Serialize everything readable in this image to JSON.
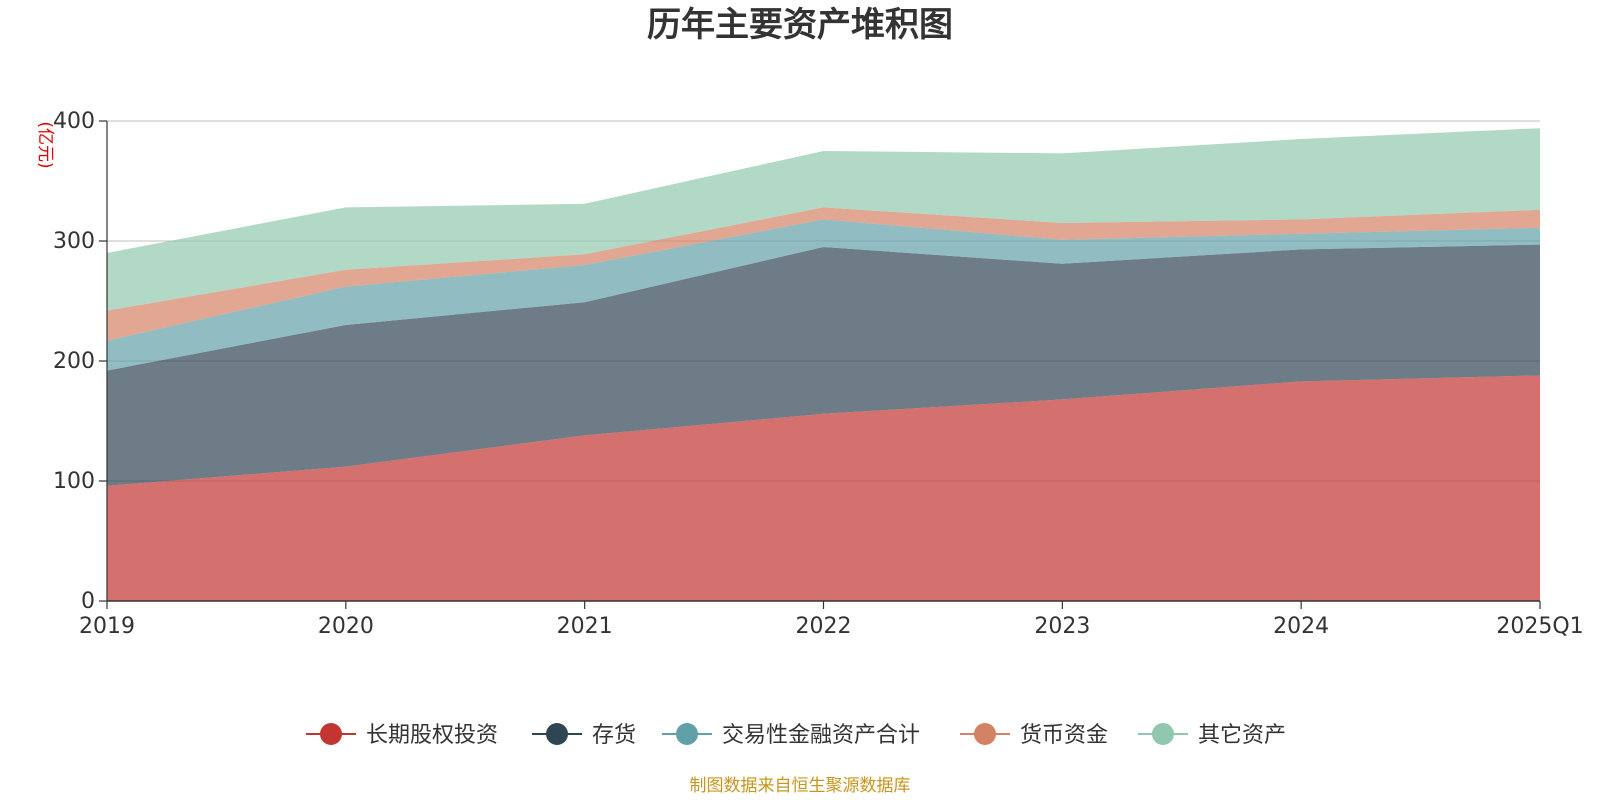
{
  "chart_data": {
    "type": "area",
    "stacked": true,
    "title": "历年主要资产堆积图",
    "ylabel": "(亿元)",
    "xlabel": "",
    "ylim": [
      0,
      400
    ],
    "yticks": [
      0,
      100,
      200,
      300,
      400
    ],
    "categories": [
      "2019",
      "2020",
      "2021",
      "2022",
      "2023",
      "2024",
      "2025Q1"
    ],
    "series": [
      {
        "name": "长期股权投资",
        "color": "#c23531",
        "values": [
          96,
          112,
          138,
          156,
          168,
          183,
          188
        ]
      },
      {
        "name": "存货",
        "color": "#2f4554",
        "values": [
          96,
          118,
          111,
          139,
          113,
          110,
          109
        ]
      },
      {
        "name": "交易性金融资产合计",
        "color": "#61a0a8",
        "values": [
          25,
          32,
          31,
          23,
          20,
          13,
          14
        ]
      },
      {
        "name": "货币资金",
        "color": "#d48265",
        "values": [
          25,
          14,
          9,
          10,
          14,
          12,
          15
        ]
      },
      {
        "name": "其它资产",
        "color": "#91c7ae",
        "values": [
          48,
          52,
          42,
          47,
          58,
          67,
          68
        ]
      }
    ],
    "legend_position": "bottom",
    "grid": true
  },
  "source_note": "制图数据来自恒生聚源数据库"
}
